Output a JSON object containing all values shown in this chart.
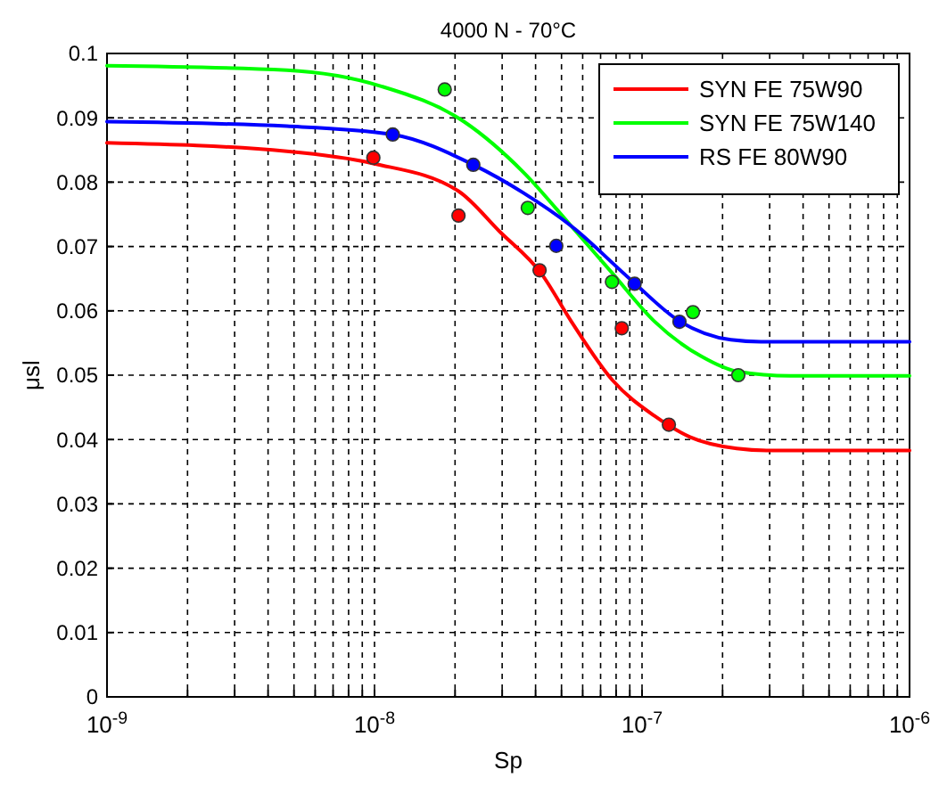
{
  "chart_data": {
    "type": "line",
    "title": "4000 N - 70°C",
    "xlabel": "Sp",
    "ylabel": "μsl",
    "log": "x",
    "grid": true,
    "legend": "top right",
    "xlim": [
      1e-09,
      1e-06
    ],
    "ylim": [
      0,
      0.1
    ],
    "xticks": [
      {
        "value": 1e-09,
        "label": "10$^{-9}$"
      },
      {
        "value": 2e-09,
        "label": null
      },
      {
        "value": 3e-09,
        "label": null
      },
      {
        "value": 4e-09,
        "label": null
      },
      {
        "value": 5e-09,
        "label": null
      },
      {
        "value": 6e-09,
        "label": null
      },
      {
        "value": 7e-09,
        "label": null
      },
      {
        "value": 8e-09,
        "label": null
      },
      {
        "value": 9e-09,
        "label": null
      },
      {
        "value": 1e-08,
        "label": "10$^{-8}$"
      },
      {
        "value": 2e-08,
        "label": null
      },
      {
        "value": 3e-08,
        "label": null
      },
      {
        "value": 4e-08,
        "label": null
      },
      {
        "value": 5e-08,
        "label": null
      },
      {
        "value": 6e-08,
        "label": null
      },
      {
        "value": 7e-08,
        "label": null
      },
      {
        "value": 8e-08,
        "label": null
      },
      {
        "value": 9e-08,
        "label": null
      },
      {
        "value": 1e-07,
        "label": "10$^{-7}$"
      },
      {
        "value": 2e-07,
        "label": null
      },
      {
        "value": 3e-07,
        "label": null
      },
      {
        "value": 4e-07,
        "label": null
      },
      {
        "value": 5e-07,
        "label": null
      },
      {
        "value": 6e-07,
        "label": null
      },
      {
        "value": 7e-07,
        "label": null
      },
      {
        "value": 8e-07,
        "label": null
      },
      {
        "value": 9e-07,
        "label": null
      },
      {
        "value": 1e-06,
        "label": "10$^{-6}$"
      }
    ],
    "yticks": [
      0,
      0.01,
      0.02,
      0.03,
      0.04,
      0.05,
      0.06,
      0.07,
      0.08,
      0.09,
      0.1
    ],
    "series": [
      {
        "name": "SYN FE 75W90",
        "color": "#ff0000",
        "marker": "none",
        "x": [
          1e-09,
          4.7e-09,
          9.9e-09,
          2.06e-08,
          2.94e-08,
          4.2e-08,
          5.43e-08,
          7.76e-08,
          1.11e-07,
          1.51e-07,
          2.26e-07,
          2.92e-07,
          1e-06
        ],
        "values": [
          0.0861,
          0.0848,
          0.0829,
          0.0786,
          0.0723,
          0.0658,
          0.0584,
          0.0492,
          0.0437,
          0.0404,
          0.0386,
          0.0383,
          0.0383
        ]
      },
      {
        "name": "SYN FE 75W140",
        "color": "#00ff00",
        "marker": "none",
        "x": [
          1e-09,
          4.7e-09,
          1.06e-08,
          2.16e-08,
          3.61e-08,
          5.43e-08,
          7.76e-08,
          1.11e-07,
          1.67e-07,
          2.26e-07,
          3.59e-07,
          1e-06
        ],
        "values": [
          0.0981,
          0.0974,
          0.0949,
          0.0894,
          0.0815,
          0.0732,
          0.0658,
          0.0584,
          0.0529,
          0.0506,
          0.0499,
          0.0499
        ]
      },
      {
        "name": "RS FE 80W90",
        "color": "#0000ff",
        "marker": "none",
        "x": [
          1e-09,
          4.7e-09,
          1.17e-08,
          2.34e-08,
          3.61e-08,
          5.43e-08,
          9.04e-08,
          1.38e-07,
          2.15e-07,
          2.78e-07,
          1e-06
        ],
        "values": [
          0.0894,
          0.0887,
          0.0874,
          0.0827,
          0.0783,
          0.0732,
          0.0649,
          0.0584,
          0.0555,
          0.0552,
          0.0552
        ]
      },
      {
        "type": "scatter",
        "color": "#ff0000",
        "marker": "circle",
        "x": [
          9.9e-09,
          2.06e-08,
          4.14e-08,
          8.4e-08,
          1.26e-07
        ],
        "values": [
          0.0838,
          0.0748,
          0.0663,
          0.0573,
          0.0423
        ]
      },
      {
        "type": "scatter",
        "color": "#00ff00",
        "marker": "circle",
        "x": [
          1.83e-08,
          3.74e-08,
          7.72e-08,
          1.55e-07,
          2.29e-07
        ],
        "values": [
          0.0944,
          0.076,
          0.0645,
          0.0598,
          0.05
        ]
      },
      {
        "type": "scatter",
        "color": "#0000ff",
        "marker": "circle",
        "x": [
          1.17e-08,
          2.34e-08,
          4.78e-08,
          9.38e-08,
          1.38e-07
        ],
        "values": [
          0.0874,
          0.0827,
          0.0701,
          0.0642,
          0.0583
        ]
      }
    ]
  }
}
